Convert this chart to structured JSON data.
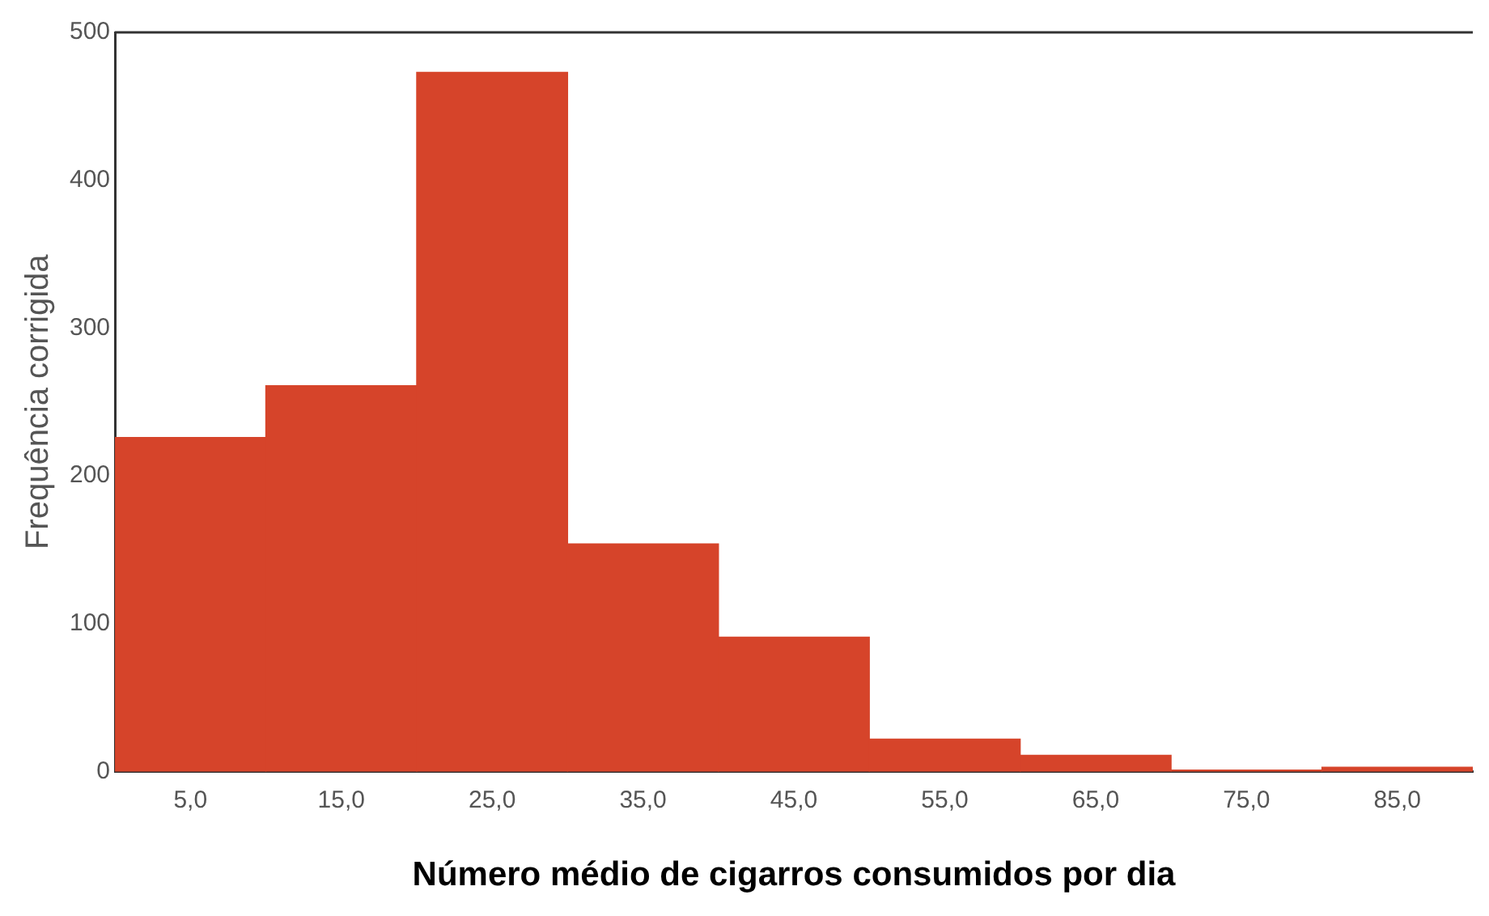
{
  "chart_data": {
    "type": "histogram",
    "xlabel": "Número médio de cigarros consumidos por dia",
    "ylabel": "Frequência corrigida",
    "bins": [
      0,
      10,
      20,
      30,
      40,
      50,
      60,
      70,
      80,
      90
    ],
    "values": [
      226,
      261,
      473,
      154,
      91,
      22,
      11,
      1,
      3
    ],
    "color": "#d6442a",
    "xlim": [
      0,
      90
    ],
    "xticks": [
      {
        "value": 5,
        "label": "5,0"
      },
      {
        "value": 15,
        "label": "15,0"
      },
      {
        "value": 25,
        "label": "25,0"
      },
      {
        "value": 35,
        "label": "35,0"
      },
      {
        "value": 45,
        "label": "45,0"
      },
      {
        "value": 55,
        "label": "55,0"
      },
      {
        "value": 65,
        "label": "65,0"
      },
      {
        "value": 75,
        "label": "75,0"
      },
      {
        "value": 85,
        "label": "85,0"
      }
    ],
    "ylim": [
      0,
      500
    ],
    "yticks": [
      0,
      100,
      200,
      300,
      400,
      500
    ],
    "grid": false,
    "legend": false
  }
}
